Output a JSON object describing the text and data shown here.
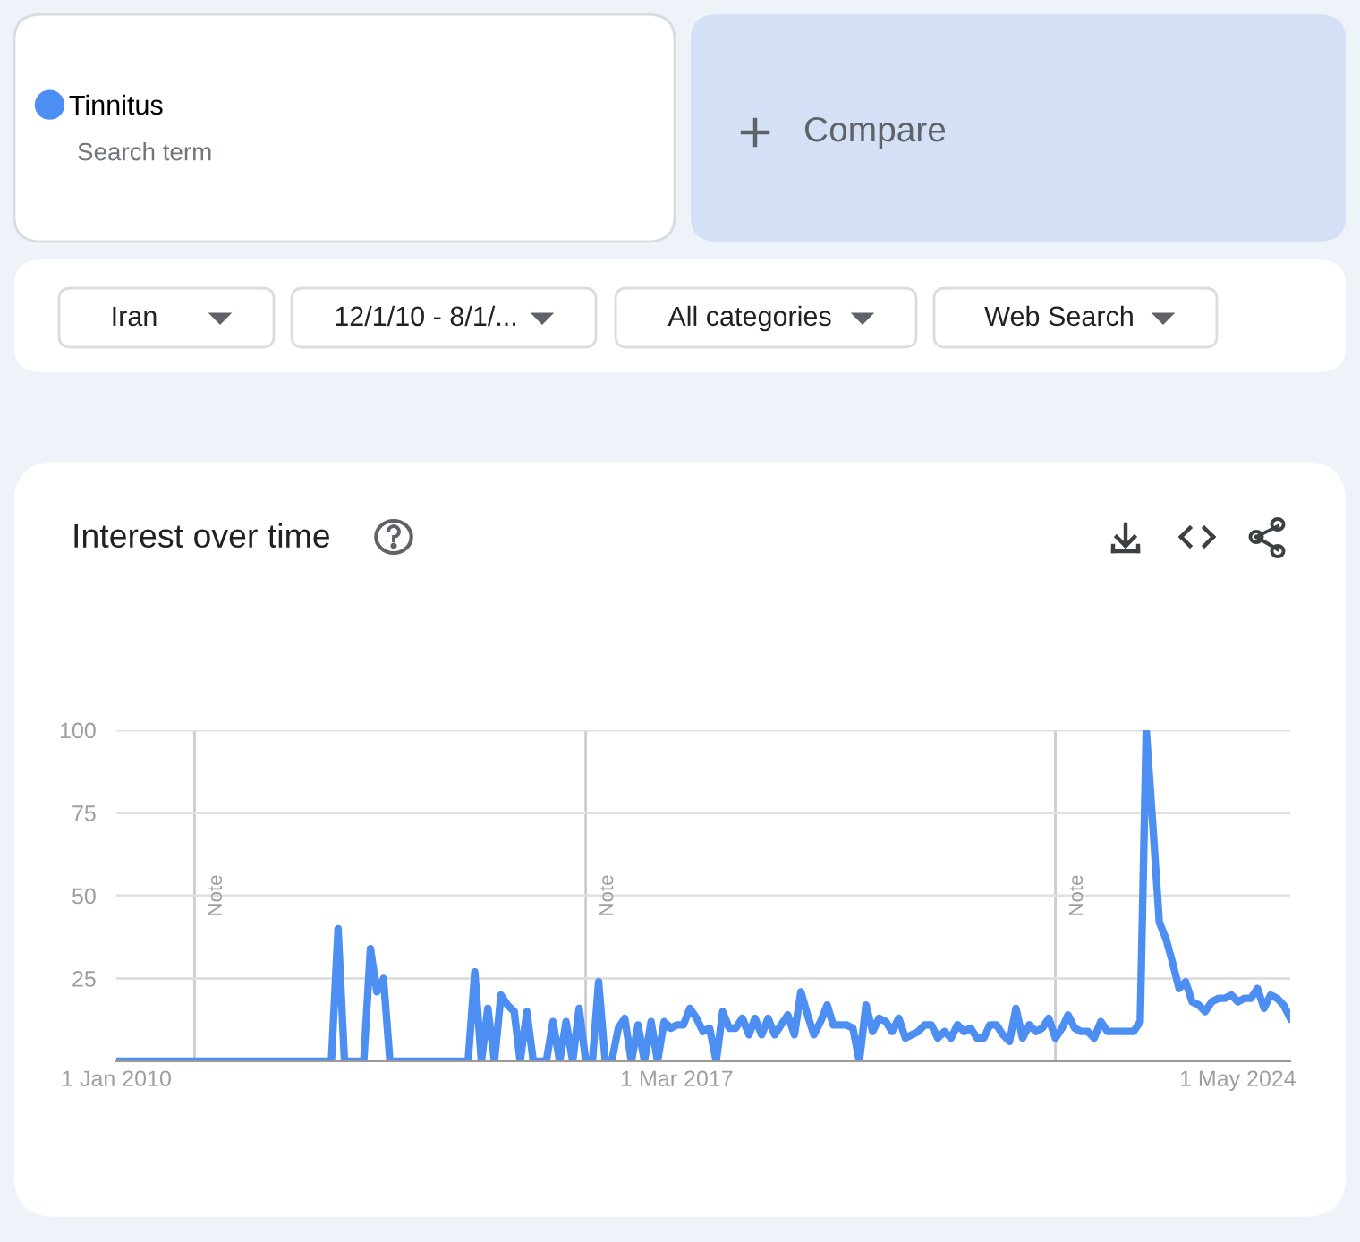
{
  "chart_data": {
    "type": "line",
    "title": "Interest over time",
    "annotations": [
      "Search term",
      "Compare",
      "Iran",
      "12/1/10 - 8/1/...",
      "All categories",
      "Web Search"
    ],
    "x": [
      "2010-01",
      "2012-10",
      "2012-11",
      "2012-12",
      "2013-03",
      "2013-04",
      "2013-05",
      "2013-06",
      "2013-07",
      "2014-07",
      "2014-08",
      "2014-09",
      "2014-10",
      "2014-11",
      "2014-12",
      "2015-01",
      "2015-02",
      "2015-03",
      "2015-04",
      "2015-05",
      "2015-07",
      "2015-08",
      "2015-09",
      "2015-10",
      "2015-11",
      "2015-12",
      "2016-01",
      "2016-02",
      "2016-03",
      "2016-04",
      "2016-05",
      "2016-06",
      "2016-07",
      "2016-08",
      "2016-09",
      "2016-10",
      "2016-11",
      "2016-12",
      "2017-01",
      "2017-02",
      "2017-03",
      "2017-04",
      "2017-05",
      "2017-06",
      "2017-07",
      "2017-08",
      "2017-09",
      "2017-10",
      "2017-11",
      "2017-12",
      "2018-01",
      "2018-02",
      "2018-03",
      "2018-04",
      "2018-05",
      "2018-06",
      "2018-07",
      "2018-08",
      "2018-09",
      "2018-10",
      "2018-11",
      "2018-12",
      "2019-01",
      "2019-02",
      "2019-03",
      "2019-04",
      "2019-05",
      "2019-06",
      "2019-07",
      "2019-08",
      "2019-09",
      "2019-10",
      "2019-11",
      "2019-12",
      "2020-01",
      "2020-02",
      "2020-03",
      "2020-04",
      "2020-05",
      "2020-06",
      "2020-07",
      "2020-08",
      "2020-09",
      "2020-10",
      "2020-11",
      "2020-12",
      "2021-01",
      "2021-02",
      "2021-03",
      "2021-04",
      "2021-05",
      "2021-06",
      "2021-07",
      "2021-08",
      "2021-09",
      "2021-10",
      "2021-11",
      "2021-12",
      "2022-01",
      "2022-02",
      "2022-03",
      "2022-04",
      "2022-05",
      "2022-06",
      "2022-07",
      "2022-08",
      "2022-09",
      "2022-10",
      "2022-11",
      "2022-12",
      "2023-01",
      "2023-02",
      "2023-03",
      "2023-04",
      "2023-05",
      "2023-06",
      "2023-07",
      "2023-08",
      "2023-09",
      "2023-10",
      "2023-11",
      "2023-12",
      "2024-01",
      "2024-02",
      "2024-03",
      "2024-04",
      "2024-05",
      "2024-06",
      "2024-07",
      "2024-08",
      "2024-09",
      "2024-10",
      "2024-11",
      "2024-12",
      "2025-01"
    ],
    "series": [
      {
        "name": "Tinnitus",
        "color": "#4d8ef3",
        "values": [
          0,
          0,
          40,
          0,
          0,
          34,
          21,
          25,
          0,
          0,
          27,
          0,
          16,
          0,
          20,
          17,
          15,
          0,
          15,
          0,
          0,
          12,
          0,
          12,
          0,
          16,
          0,
          0,
          24,
          0,
          0,
          10,
          13,
          0,
          11,
          0,
          12,
          0,
          12,
          10,
          11,
          11,
          16,
          13,
          9,
          10,
          0,
          15,
          10,
          10,
          13,
          8,
          13,
          8,
          13,
          8,
          11,
          14,
          8,
          21,
          14,
          8,
          12,
          17,
          11,
          11,
          11,
          10,
          0,
          17,
          9,
          13,
          12,
          9,
          13,
          7,
          8,
          9,
          11,
          11,
          7,
          9,
          7,
          11,
          9,
          10,
          7,
          7,
          11,
          11,
          8,
          6,
          16,
          7,
          11,
          9,
          10,
          13,
          7,
          10,
          14,
          10,
          9,
          9,
          7,
          12,
          9,
          9,
          9,
          9,
          9,
          12,
          100,
          71,
          42,
          37,
          30,
          22,
          24,
          18,
          17,
          15,
          18,
          19,
          19,
          20,
          18,
          19,
          19,
          22,
          16,
          20,
          19,
          17,
          13
        ]
      }
    ],
    "xlim": [
      "2010-01",
      "2025-01"
    ],
    "xticks": [
      {
        "value": "2010-01-01",
        "label": "1 Jan 2010"
      },
      {
        "value": "2017-03-01",
        "label": "1 Mar 2017"
      },
      {
        "value": "2024-05-01",
        "label": "1 May 2024"
      }
    ],
    "ylim": [
      0,
      100
    ],
    "yticks": [
      25,
      50,
      75,
      100
    ],
    "ref_lines": [
      {
        "axis": "x",
        "value": "2011-01",
        "label": "Note",
        "color": "#cccccc"
      },
      {
        "axis": "x",
        "value": "2016-01",
        "label": "Note",
        "color": "#cccccc"
      },
      {
        "axis": "x",
        "value": "2022-01",
        "label": "Note",
        "color": "#cccccc"
      }
    ],
    "grid": "y",
    "legend": "top left",
    "marker": "none",
    "line_style": "solid"
  }
}
